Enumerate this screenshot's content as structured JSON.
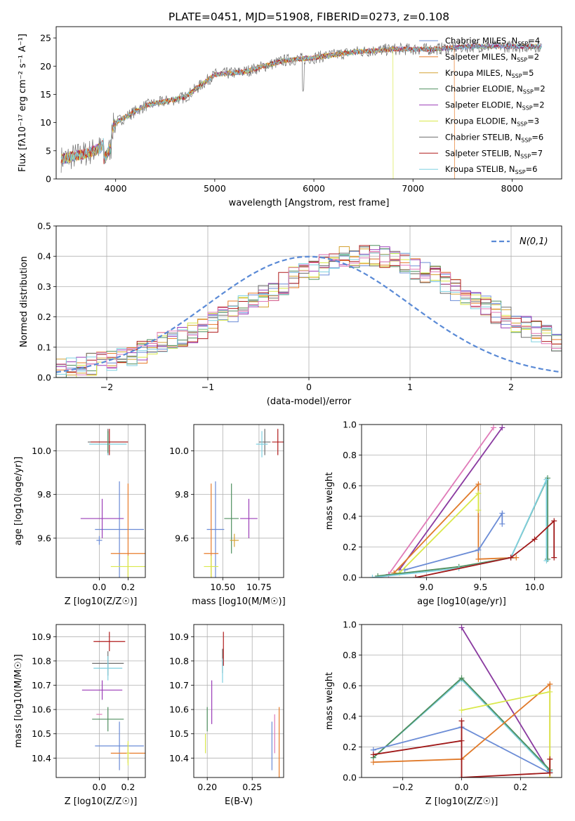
{
  "figure_title": "PLATE=0451, MJD=51908, FIBERID=0273, z=0.108",
  "legend_labels": [
    "Chabrier MILES, N_SSP=4",
    "Salpeter MILES, N_SSP=2",
    "Kroupa MILES, N_SSP=5",
    "Chabrier ELODIE, N_SSP=2",
    "Salpeter ELODIE, N_SSP=2",
    "Kroupa ELODIE, N_SSP=3",
    "Chabrier STELIB, N_SSP=6",
    "Salpeter STELIB, N_SSP=7",
    "Kroupa STELIB, N_SSP=6"
  ],
  "legend_text": [
    {
      "pre": "Chabrier MILES, N",
      "sub": "SSP",
      "post": "=4"
    },
    {
      "pre": "Salpeter MILES, N",
      "sub": "SSP",
      "post": "=2"
    },
    {
      "pre": "Kroupa MILES, N",
      "sub": "SSP",
      "post": "=5"
    },
    {
      "pre": "Chabrier ELODIE, N",
      "sub": "SSP",
      "post": "=2"
    },
    {
      "pre": "Salpeter ELODIE, N",
      "sub": "SSP",
      "post": "=2"
    },
    {
      "pre": "Kroupa ELODIE, N",
      "sub": "SSP",
      "post": "=3"
    },
    {
      "pre": "Chabrier STELIB, N",
      "sub": "SSP",
      "post": "=6"
    },
    {
      "pre": "Salpeter STELIB, N",
      "sub": "SSP",
      "post": "=7"
    },
    {
      "pre": "Kroupa STELIB, N",
      "sub": "SSP",
      "post": "=6"
    }
  ],
  "colors": [
    "#6b8cd6",
    "#e87c2a",
    "#d4a233",
    "#4f8f5f",
    "#9b3db8",
    "#d9e84a",
    "#6e6e6e",
    "#b01c1c",
    "#7fd0e0"
  ],
  "extra_colors": {
    "pink": "#e07ab8",
    "purple": "#8a3aa0",
    "normal_curve": "#5a8ad6",
    "orange": "#e07a2a",
    "red": "#a01818"
  },
  "chart_data": [
    {
      "id": "spectrum",
      "type": "line",
      "xlabel": "wavelength [Angstrom, rest frame]",
      "ylabel": "Flux [fλ10⁻¹⁷ erg cm⁻² s⁻¹ A⁻¹]",
      "xlim": [
        3400,
        8500
      ],
      "ylim": [
        0,
        27
      ],
      "xticks": [
        4000,
        5000,
        6000,
        7000,
        8000
      ],
      "yticks": [
        0,
        5,
        10,
        15,
        20,
        25
      ],
      "continuum": [
        [
          3450,
          3.5
        ],
        [
          3700,
          4.5
        ],
        [
          3850,
          5.5
        ],
        [
          4000,
          10
        ],
        [
          4300,
          13
        ],
        [
          4700,
          14.5
        ],
        [
          5000,
          18.5
        ],
        [
          5300,
          19
        ],
        [
          5700,
          21
        ],
        [
          6000,
          21.5
        ],
        [
          6400,
          22.5
        ],
        [
          6800,
          23
        ],
        [
          7200,
          23
        ],
        [
          7600,
          23.5
        ],
        [
          8000,
          23.5
        ],
        [
          8300,
          23.5
        ]
      ],
      "grid": false,
      "legend_position": "upper right"
    },
    {
      "id": "residuals",
      "type": "line",
      "xlabel": "(data-model)/error",
      "ylabel": "Normed distribution",
      "xlim": [
        -2.5,
        2.5
      ],
      "ylim": [
        0,
        0.5
      ],
      "xticks": [
        -2,
        -1,
        0,
        1,
        2
      ],
      "yticks": [
        0.0,
        0.1,
        0.2,
        0.3,
        0.4,
        0.5
      ],
      "normal_label": "N(0,1)",
      "bin_width": 0.1,
      "bin_centers_from": -2.45,
      "reference_hist": [
        0.03,
        0.035,
        0.04,
        0.045,
        0.05,
        0.055,
        0.06,
        0.07,
        0.085,
        0.1,
        0.115,
        0.125,
        0.14,
        0.15,
        0.165,
        0.18,
        0.2,
        0.215,
        0.235,
        0.255,
        0.27,
        0.29,
        0.31,
        0.33,
        0.345,
        0.36,
        0.375,
        0.385,
        0.395,
        0.4,
        0.405,
        0.4,
        0.395,
        0.385,
        0.375,
        0.36,
        0.345,
        0.33,
        0.31,
        0.29,
        0.27,
        0.255,
        0.235,
        0.215,
        0.2,
        0.18,
        0.165,
        0.15,
        0.135,
        0.12
      ],
      "grid": true,
      "legend_position": "upper right"
    },
    {
      "id": "z_age",
      "type": "scatter",
      "xlabel": "Z [log10(Z/Z☉)]",
      "ylabel": "age  [log10(age/yr)]",
      "xlim": [
        -0.3,
        0.32
      ],
      "ylim": [
        9.42,
        10.12
      ],
      "xticks": [
        0.0,
        0.2
      ],
      "yticks": [
        9.6,
        9.8,
        10.0
      ],
      "points": [
        {
          "c": 0,
          "x": 0.14,
          "y": 9.64,
          "xerr": 0.17,
          "yerr": 0.22
        },
        {
          "c": 1,
          "x": 0.2,
          "y": 9.53,
          "xerr": 0.12,
          "yerr": 0.32
        },
        {
          "c": 4,
          "x": 0.02,
          "y": 9.69,
          "xerr": 0.15,
          "yerr": 0.09
        },
        {
          "c": 5,
          "x": 0.2,
          "y": 9.47,
          "xerr": 0.12,
          "yerr": 0.05
        },
        {
          "c": 6,
          "x": 0.06,
          "y": 10.04,
          "xerr": 0.14,
          "yerr": 0.06
        },
        {
          "c": 7,
          "x": 0.07,
          "y": 10.04,
          "xerr": 0.13,
          "yerr": 0.06
        },
        {
          "c": 8,
          "x": 0.06,
          "y": 10.03,
          "xerr": 0.13,
          "yerr": 0.05
        },
        {
          "c": 3,
          "x": 0.06,
          "y": 10.04,
          "xerr": 0.0,
          "yerr": 0.05
        },
        {
          "c": 0,
          "x": 0.0,
          "y": 9.59,
          "xerr": 0.02,
          "yerr": 0.02
        }
      ],
      "grid": true
    },
    {
      "id": "mass_age",
      "type": "scatter",
      "xlabel": "mass [log10(M/M☉)]",
      "ylabel": "",
      "xlim": [
        10.3,
        10.92
      ],
      "ylim": [
        9.42,
        10.12
      ],
      "xticks": [
        10.5,
        10.75
      ],
      "yticks": [
        9.6,
        9.8,
        10.0
      ],
      "points": [
        {
          "c": 0,
          "x": 10.45,
          "y": 9.64,
          "xerr": 0.06,
          "yerr": 0.22
        },
        {
          "c": 1,
          "x": 10.42,
          "y": 9.53,
          "xerr": 0.05,
          "yerr": 0.32
        },
        {
          "c": 4,
          "x": 10.68,
          "y": 9.69,
          "xerr": 0.06,
          "yerr": 0.09
        },
        {
          "c": 5,
          "x": 10.42,
          "y": 9.47,
          "xerr": 0.05,
          "yerr": 0.05
        },
        {
          "c": 3,
          "x": 10.56,
          "y": 9.69,
          "xerr": 0.05,
          "yerr": 0.16
        },
        {
          "c": 6,
          "x": 10.79,
          "y": 10.04,
          "xerr": 0.04,
          "yerr": 0.06
        },
        {
          "c": 7,
          "x": 10.88,
          "y": 10.04,
          "xerr": 0.04,
          "yerr": 0.06
        },
        {
          "c": 8,
          "x": 10.77,
          "y": 10.03,
          "xerr": 0.04,
          "yerr": 0.06
        },
        {
          "c": 2,
          "x": 10.58,
          "y": 9.59,
          "xerr": 0.03,
          "yerr": 0.03
        }
      ],
      "grid": true
    },
    {
      "id": "age_massweight",
      "type": "line",
      "xlabel": "age  [log10(age/yr)]",
      "ylabel": "mass weight",
      "xlim": [
        8.4,
        10.25
      ],
      "ylim": [
        0,
        1.0
      ],
      "xticks": [
        9.0,
        9.5,
        10.0
      ],
      "yticks": [
        0.0,
        0.2,
        0.4,
        0.6,
        0.8,
        1.0
      ],
      "lines": [
        {
          "c": "pink",
          "pts": [
            [
              8.65,
              0.02
            ],
            [
              9.62,
              0.98
            ]
          ]
        },
        {
          "c": "purple",
          "pts": [
            [
              8.75,
              0.05
            ],
            [
              9.7,
              0.98
            ]
          ]
        },
        {
          "c": "orange",
          "pts": [
            [
              8.7,
              0.03
            ],
            [
              9.48,
              0.61
            ],
            [
              9.48,
              0.12
            ],
            [
              9.83,
              0.13
            ]
          ]
        },
        {
          "c": 0,
          "pts": [
            [
              8.8,
              0.05
            ],
            [
              9.48,
              0.18
            ],
            [
              9.7,
              0.42
            ],
            [
              9.7,
              0.35
            ]
          ]
        },
        {
          "c": 5,
          "pts": [
            [
              8.75,
              0.03
            ],
            [
              9.48,
              0.55
            ],
            [
              9.48,
              0.44
            ]
          ]
        },
        {
          "c": 3,
          "pts": [
            [
              8.55,
              0.01
            ],
            [
              9.3,
              0.07
            ],
            [
              9.78,
              0.13
            ],
            [
              10.12,
              0.65
            ],
            [
              10.12,
              0.12
            ]
          ]
        },
        {
          "c": 8,
          "pts": [
            [
              8.5,
              0.0
            ],
            [
              9.3,
              0.06
            ],
            [
              9.78,
              0.13
            ],
            [
              10.11,
              0.64
            ],
            [
              10.11,
              0.11
            ]
          ]
        },
        {
          "c": "red",
          "pts": [
            [
              8.9,
              0.0
            ],
            [
              9.78,
              0.13
            ],
            [
              10.0,
              0.25
            ],
            [
              10.18,
              0.37
            ],
            [
              10.18,
              0.13
            ]
          ]
        }
      ],
      "grid": true
    },
    {
      "id": "z_mass",
      "type": "scatter",
      "xlabel": "Z [log10(Z/Z☉)]",
      "ylabel": "mass [log10(M/M☉)]",
      "xlim": [
        -0.3,
        0.32
      ],
      "ylim": [
        10.32,
        10.95
      ],
      "xticks": [
        0.0,
        0.2
      ],
      "yticks": [
        10.4,
        10.5,
        10.6,
        10.7,
        10.8,
        10.9
      ],
      "points": [
        {
          "c": 0,
          "x": 0.14,
          "y": 10.45,
          "xerr": 0.17,
          "yerr": 0.1
        },
        {
          "c": 1,
          "x": 0.2,
          "y": 10.42,
          "xerr": 0.12,
          "yerr": 0.04
        },
        {
          "c": 3,
          "x": 0.06,
          "y": 10.56,
          "xerr": 0.11,
          "yerr": 0.05
        },
        {
          "c": 4,
          "x": 0.02,
          "y": 10.68,
          "xerr": 0.14,
          "yerr": 0.04
        },
        {
          "c": 5,
          "x": 0.2,
          "y": 10.42,
          "xerr": 0.01,
          "yerr": 0.05
        },
        {
          "c": 6,
          "x": 0.06,
          "y": 10.79,
          "xerr": 0.11,
          "yerr": 0.05
        },
        {
          "c": 7,
          "x": 0.07,
          "y": 10.88,
          "xerr": 0.11,
          "yerr": 0.04
        },
        {
          "c": 8,
          "x": 0.06,
          "y": 10.77,
          "xerr": 0.1,
          "yerr": 0.05
        },
        {
          "c": "pink",
          "x": 0.0,
          "y": 10.58,
          "xerr": 0.02,
          "yerr": 0.0
        }
      ],
      "grid": true
    },
    {
      "id": "ebv_mass",
      "type": "scatter",
      "xlabel": "E(B-V)",
      "ylabel": "",
      "xlim": [
        0.185,
        0.285
      ],
      "ylim": [
        10.32,
        10.95
      ],
      "xticks": [
        0.2,
        0.25
      ],
      "yticks": [
        10.4,
        10.5,
        10.6,
        10.7,
        10.8,
        10.9
      ],
      "points": [
        {
          "c": 0,
          "x": 0.272,
          "y": 10.45,
          "xerr": 0,
          "yerr": 0.1
        },
        {
          "c": 1,
          "x": 0.28,
          "y": 10.42,
          "xerr": 0,
          "yerr": 0.19
        },
        {
          "c": 5,
          "x": 0.198,
          "y": 10.46,
          "xerr": 0,
          "yerr": 0.04
        },
        {
          "c": 3,
          "x": 0.2,
          "y": 10.56,
          "xerr": 0,
          "yerr": 0.05
        },
        {
          "c": 4,
          "x": 0.205,
          "y": 10.63,
          "xerr": 0,
          "yerr": 0.09
        },
        {
          "c": 6,
          "x": 0.217,
          "y": 10.8,
          "xerr": 0,
          "yerr": 0.05
        },
        {
          "c": 7,
          "x": 0.218,
          "y": 10.85,
          "xerr": 0,
          "yerr": 0.07
        },
        {
          "c": 8,
          "x": 0.217,
          "y": 10.76,
          "xerr": 0,
          "yerr": 0.05
        },
        {
          "c": "pink",
          "x": 0.275,
          "y": 10.5,
          "xerr": 0,
          "yerr": 0.08
        }
      ],
      "grid": true
    },
    {
      "id": "z_massweight",
      "type": "line",
      "xlabel": "Z [log10(Z/Z☉)]",
      "ylabel": "mass weight",
      "xlim": [
        -0.34,
        0.34
      ],
      "ylim": [
        0,
        1.0
      ],
      "xticks": [
        -0.2,
        0.0,
        0.2
      ],
      "yticks": [
        0.0,
        0.2,
        0.4,
        0.6,
        0.8,
        1.0
      ],
      "lines": [
        {
          "c": "purple",
          "pts": [
            [
              0.0,
              0.98
            ],
            [
              0.3,
              0.03
            ]
          ]
        },
        {
          "c": 8,
          "pts": [
            [
              -0.3,
              0.13
            ],
            [
              0.0,
              0.64
            ],
            [
              0.3,
              0.04
            ]
          ]
        },
        {
          "c": 3,
          "pts": [
            [
              -0.3,
              0.13
            ],
            [
              0.0,
              0.65
            ],
            [
              0.3,
              0.05
            ]
          ]
        },
        {
          "c": 0,
          "pts": [
            [
              -0.3,
              0.18
            ],
            [
              0.0,
              0.33
            ],
            [
              0.3,
              0.03
            ]
          ]
        },
        {
          "c": "orange",
          "pts": [
            [
              -0.3,
              0.1
            ],
            [
              0.0,
              0.12
            ],
            [
              0.3,
              0.61
            ],
            [
              0.3,
              0.0
            ]
          ]
        },
        {
          "c": 5,
          "pts": [
            [
              0.0,
              0.44
            ],
            [
              0.3,
              0.56
            ],
            [
              0.3,
              0.0
            ]
          ]
        },
        {
          "c": "red",
          "pts": [
            [
              -0.3,
              0.15
            ],
            [
              0.0,
              0.24
            ],
            [
              0.0,
              0.37
            ],
            [
              0.0,
              0.0
            ],
            [
              0.3,
              0.03
            ],
            [
              0.3,
              0.12
            ]
          ]
        }
      ],
      "grid": true
    }
  ]
}
